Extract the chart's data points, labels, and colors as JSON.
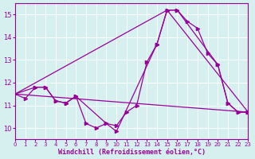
{
  "bg_color": "#d6f0f0",
  "line_color": "#990099",
  "grid_color": "#ffffff",
  "xlabel": "Windchill (Refroidissement éolien,°C)",
  "ylabel_ticks": [
    10,
    11,
    12,
    13,
    14,
    15
  ],
  "xlim": [
    0,
    23
  ],
  "ylim": [
    9.5,
    15.5
  ],
  "line1_x": [
    0,
    1,
    2,
    3,
    4,
    5,
    6,
    7,
    8,
    9,
    10,
    11,
    12,
    13,
    14,
    15,
    16,
    17,
    18,
    19,
    20,
    21,
    22,
    23
  ],
  "line1_y": [
    11.5,
    11.3,
    11.8,
    11.8,
    11.2,
    11.1,
    11.4,
    10.2,
    10.0,
    10.2,
    10.1,
    10.7,
    11.0,
    12.9,
    13.7,
    15.2,
    15.2,
    14.7,
    14.4,
    13.3,
    12.8,
    11.1,
    10.7,
    10.7
  ],
  "line2_x": [
    0,
    2,
    3,
    4,
    5,
    6,
    9,
    10,
    14,
    15,
    16,
    20,
    21,
    22,
    23
  ],
  "line2_y": [
    11.5,
    11.8,
    11.8,
    11.2,
    11.1,
    11.4,
    10.2,
    9.85,
    13.7,
    15.2,
    15.2,
    12.8,
    11.1,
    10.7,
    10.7
  ],
  "line3_x": [
    0,
    23
  ],
  "line3_y": [
    11.5,
    10.7
  ],
  "line4_x": [
    0,
    15,
    23
  ],
  "line4_y": [
    11.5,
    15.2,
    10.7
  ]
}
